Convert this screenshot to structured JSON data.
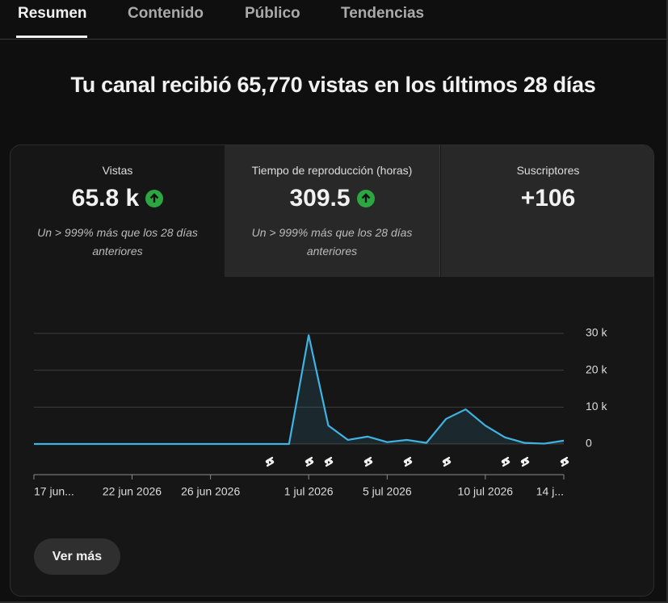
{
  "tabs": [
    "Resumen",
    "Contenido",
    "Público",
    "Tendencias"
  ],
  "headline": "Tu canal recibió 65,770 vistas en los últimos 28 días",
  "cards": [
    {
      "label": "Vistas",
      "value": "65.8 k",
      "note": "Un > 999% más que los 28 días anteriores"
    },
    {
      "label": "Tiempo de reproducción (horas)",
      "value": "309.5",
      "note": "Un > 999% más que los 28 días anteriores"
    },
    {
      "label": "Suscriptores",
      "value": "+106"
    }
  ],
  "chart_data": {
    "type": "line",
    "categories": [
      "17 jun...",
      null,
      null,
      null,
      null,
      "22 jun 2026",
      null,
      null,
      null,
      "26 jun 2026",
      null,
      null,
      null,
      null,
      "1 jul 2026",
      null,
      null,
      null,
      "5 jul 2026",
      null,
      null,
      null,
      null,
      "10 jul 2026",
      null,
      null,
      null,
      "14 j..."
    ],
    "series": [
      {
        "name": "Vistas",
        "color": "#3fb4e2",
        "values": [
          0,
          0,
          0,
          0,
          0,
          0,
          0,
          0,
          0,
          0,
          0,
          0,
          0,
          0,
          29500,
          5000,
          1100,
          2000,
          500,
          1100,
          300,
          6800,
          9400,
          5000,
          1800,
          300,
          100,
          900
        ]
      }
    ],
    "ylim": [
      0,
      30000
    ],
    "yticks": [
      {
        "value": 0,
        "label": "0"
      },
      {
        "value": 10000,
        "label": "10 k"
      },
      {
        "value": 20000,
        "label": "20 k"
      },
      {
        "value": 30000,
        "label": "30 k"
      }
    ],
    "grid": true
  },
  "button": "Ver más"
}
